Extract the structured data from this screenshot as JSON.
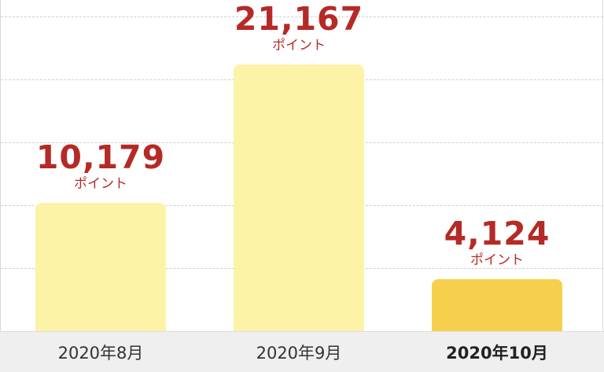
{
  "chart_data": {
    "type": "bar",
    "categories": [
      "2020年8月",
      "2020年9月",
      "2020年10月"
    ],
    "values": [
      10179,
      21167,
      4124
    ],
    "value_labels": [
      "10,179",
      "21,167",
      "4,124"
    ],
    "unit": "ポイント",
    "highlighted_index": 2,
    "grid": true,
    "ylim": [
      0,
      25000
    ],
    "colors": {
      "bar": "#fdf3a6",
      "bar_highlight": "#f6d04d",
      "label": "#b52a26"
    }
  }
}
